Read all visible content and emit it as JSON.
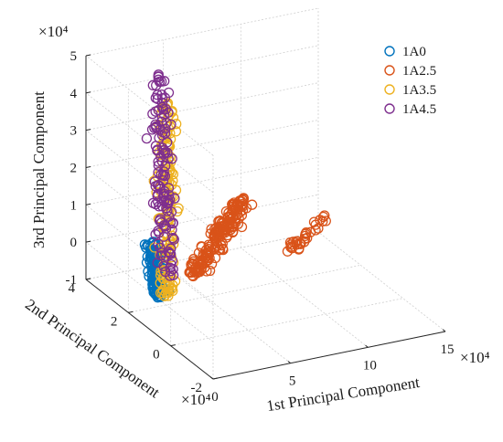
{
  "chart_data": {
    "type": "scatter",
    "title": "",
    "xlabel": "1st Principal Component",
    "ylabel": "2nd Principal Component",
    "zlabel": "3rd Principal Component",
    "x_exponent": "×10⁴",
    "y_exponent": "×10⁴",
    "z_exponent": "×10⁴",
    "xlim": [
      0,
      15
    ],
    "ylim": [
      -2,
      4
    ],
    "zlim": [
      -1,
      5
    ],
    "x_ticks": [
      "0",
      "5",
      "10",
      "15"
    ],
    "y_ticks": [
      "-2",
      "0",
      "2",
      "4"
    ],
    "z_ticks": [
      "-1",
      "0",
      "1",
      "2",
      "3",
      "4",
      "5"
    ],
    "grid": true,
    "legend_position": "top-right",
    "series": [
      {
        "name": "1A0",
        "color": "#0072BD",
        "clusters": [
          {
            "x": [
              0.5,
              3.0
            ],
            "y": [
              1.0,
              3.0
            ],
            "z": [
              -0.2,
              0.2
            ],
            "count": 150
          }
        ]
      },
      {
        "name": "1A2.5",
        "color": "#D95319",
        "clusters": [
          {
            "x": [
              3.5,
              9.5
            ],
            "y": [
              1.5,
              3.5
            ],
            "z": [
              -0.1,
              0.6
            ],
            "count": 170
          },
          {
            "x": [
              9.5,
              13.5
            ],
            "y": [
              1.5,
              2.5
            ],
            "z": [
              0.0,
              0.3
            ],
            "count": 30
          }
        ]
      },
      {
        "name": "1A3.5",
        "color": "#EDB120",
        "clusters": [
          {
            "x": [
              0.5,
              4.5
            ],
            "y": [
              0.5,
              3.5
            ],
            "z": [
              0.0,
              3.6
            ],
            "count": 140
          }
        ]
      },
      {
        "name": "1A4.5",
        "color": "#7E2F8E",
        "clusters": [
          {
            "x": [
              0.5,
              4.0
            ],
            "y": [
              0.5,
              3.5
            ],
            "z": [
              0.6,
              4.4
            ],
            "count": 130
          }
        ]
      }
    ]
  }
}
